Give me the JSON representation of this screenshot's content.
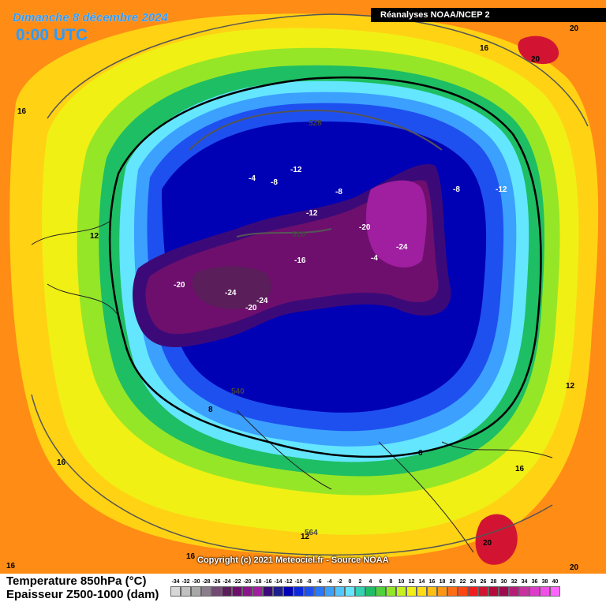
{
  "title": {
    "date": "Dimanche 8 décembre 2024",
    "time": "0:00 UTC"
  },
  "source": "Réanalyses NOAA/NCEP 2",
  "copyright": "Copyright (c) 2021 Meteociel.fr - Source NOAA",
  "legend": {
    "variable_1": "Temperature 850hPa (°C)",
    "variable_2": "Epaisseur Z500-1000 (dam)",
    "scale": [
      {
        "label": "-34",
        "color": "#d7d7d7"
      },
      {
        "label": "-32",
        "color": "#c0c0c0"
      },
      {
        "label": "-30",
        "color": "#a8a8a8"
      },
      {
        "label": "-28",
        "color": "#8c7d8c"
      },
      {
        "label": "-26",
        "color": "#734a73"
      },
      {
        "label": "-24",
        "color": "#5a1e5a"
      },
      {
        "label": "-22",
        "color": "#6e0f6e"
      },
      {
        "label": "-20",
        "color": "#8c148c"
      },
      {
        "label": "-18",
        "color": "#a01ea0"
      },
      {
        "label": "-16",
        "color": "#3c0a78"
      },
      {
        "label": "-14",
        "color": "#1e1e8c"
      },
      {
        "label": "-12",
        "color": "#0000b4"
      },
      {
        "label": "-10",
        "color": "#0a28dc"
      },
      {
        "label": "-8",
        "color": "#1e50f0"
      },
      {
        "label": "-6",
        "color": "#2878ff"
      },
      {
        "label": "-4",
        "color": "#3ca0ff"
      },
      {
        "label": "-2",
        "color": "#50c8ff"
      },
      {
        "label": "0",
        "color": "#64e6ff"
      },
      {
        "label": "2",
        "color": "#32d2b4"
      },
      {
        "label": "4",
        "color": "#1ebe64"
      },
      {
        "label": "6",
        "color": "#50d23c"
      },
      {
        "label": "8",
        "color": "#96e628"
      },
      {
        "label": "10",
        "color": "#c8f01e"
      },
      {
        "label": "12",
        "color": "#f0f014"
      },
      {
        "label": "14",
        "color": "#ffdc14"
      },
      {
        "label": "16",
        "color": "#ffbe14"
      },
      {
        "label": "18",
        "color": "#ff9614"
      },
      {
        "label": "20",
        "color": "#ff6e14"
      },
      {
        "label": "22",
        "color": "#ff4614"
      },
      {
        "label": "24",
        "color": "#f01e1e"
      },
      {
        "label": "26",
        "color": "#d21432"
      },
      {
        "label": "28",
        "color": "#b40a3c"
      },
      {
        "label": "30",
        "color": "#a00a50"
      },
      {
        "label": "32",
        "color": "#b41e78"
      },
      {
        "label": "34",
        "color": "#c832a0"
      },
      {
        "label": "36",
        "color": "#dc3cc8"
      },
      {
        "label": "38",
        "color": "#f050e6"
      },
      {
        "label": "40",
        "color": "#ff64ff"
      }
    ]
  },
  "labels": {
    "t_n16_arctic": "-16",
    "t_n12_siberia": "-12",
    "t_n12_canada": "-12",
    "t_n12_central": "-12",
    "t_n8_a": "-8",
    "t_n8_b": "-8",
    "t_n8_c": "-8",
    "t_n4": "-4",
    "t_n20_a": "-20",
    "t_n20_b": "-20",
    "t_n20_c": "-20",
    "t_n24_a": "-24",
    "t_n24_b": "-24",
    "t_n24_c": "-24",
    "t_n4_small": "-4",
    "t_16_tl": "16",
    "t_16_top": "16",
    "t_16_left": "16",
    "t_16_right": "16",
    "t_16_bl": "16",
    "t_16_bottom": "16",
    "t_12_left": "12",
    "t_12_right": "12",
    "t_12_bottom": "12",
    "t_8": "8",
    "t_6": "6",
    "t_20_tr1": "20",
    "t_20_tr2": "20",
    "t_20_br": "20",
    "t_20_bcorner": "20",
    "z_528": "528",
    "z_510": "510",
    "z_540": "540",
    "z_564": "564"
  },
  "colors": {
    "warm": "#ff9614",
    "yellow": "#f0f014",
    "green": "#50d23c",
    "cyan": "#64e6ff",
    "blue": "#1e50f0",
    "deep_blue": "#0000b4",
    "purple": "#6e0f6e",
    "magenta": "#a01ea0"
  }
}
